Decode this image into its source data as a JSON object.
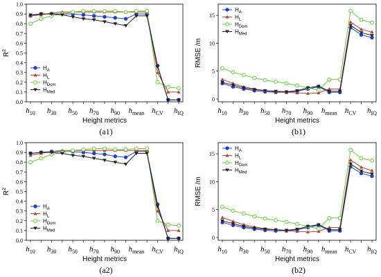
{
  "colors": {
    "H_A": "#1f3fd6",
    "H_L": "#b5452f",
    "H_Dom": "#66cc33",
    "H_Med": "#222222"
  },
  "markers": {
    "H_A": "circle",
    "H_L": "triangle-up",
    "H_Dom": "circle-open",
    "H_Med": "triangle-down"
  },
  "chart_data": [
    {
      "id": "a1",
      "type": "line",
      "panel_label": "(a1)",
      "xlabel": "Height metrics",
      "ylabel": "R",
      "ylabel_sup": "2",
      "ylim": [
        0,
        1.0
      ],
      "yticks": [
        0.0,
        0.1,
        0.2,
        0.3,
        0.4,
        0.5,
        0.6,
        0.7,
        0.8,
        0.9,
        1.0
      ],
      "ytick_labels": [
        "0.0",
        "0.1",
        "0.2",
        "0.3",
        "0.4",
        "0.5",
        "0.6",
        "0.7",
        "0.8",
        "0.9",
        "1.0"
      ],
      "legend_position": "left",
      "categories": [
        {
          "base": "h",
          "sub": "10"
        },
        {
          "base": "h",
          "sub": "20"
        },
        {
          "base": "h",
          "sub": "30"
        },
        {
          "base": "h",
          "sub": "40"
        },
        {
          "base": "h",
          "sub": "50"
        },
        {
          "base": "h",
          "sub": "60"
        },
        {
          "base": "h",
          "sub": "70"
        },
        {
          "base": "h",
          "sub": "80"
        },
        {
          "base": "h",
          "sub": "90"
        },
        {
          "base": "h",
          "sub": "95"
        },
        {
          "base": "h",
          "sub": "mean"
        },
        {
          "base": "h",
          "sub": "max"
        },
        {
          "base": "h",
          "sub": "CV"
        },
        {
          "base": "h",
          "sub": "std"
        },
        {
          "base": "h",
          "sub": "IQ"
        }
      ],
      "shown_category_indices": [
        0,
        2,
        4,
        6,
        8,
        10,
        12,
        14
      ],
      "series": [
        {
          "key": "H_A",
          "name": "H",
          "sub": "A",
          "values": [
            0.88,
            0.9,
            0.9,
            0.9,
            0.9,
            0.89,
            0.88,
            0.87,
            0.86,
            0.85,
            0.9,
            0.9,
            0.37,
            0.02,
            0.02
          ]
        },
        {
          "key": "H_L",
          "name": "H",
          "sub": "L",
          "values": [
            0.88,
            0.89,
            0.91,
            0.92,
            0.92,
            0.92,
            0.92,
            0.92,
            0.92,
            0.92,
            0.92,
            0.92,
            0.3,
            0.1,
            0.1
          ]
        },
        {
          "key": "H_Dom",
          "name": "H",
          "sub": "Dom",
          "values": [
            0.8,
            0.85,
            0.88,
            0.9,
            0.92,
            0.93,
            0.93,
            0.93,
            0.93,
            0.92,
            0.93,
            0.93,
            0.2,
            0.15,
            0.14
          ]
        },
        {
          "key": "H_Med",
          "name": "H",
          "sub": "Med",
          "values": [
            0.89,
            0.9,
            0.9,
            0.89,
            0.87,
            0.85,
            0.84,
            0.82,
            0.8,
            0.78,
            0.88,
            0.88,
            0.36,
            0.02,
            0.02
          ]
        }
      ]
    },
    {
      "id": "b1",
      "type": "line",
      "panel_label": "(b1)",
      "xlabel": "Height metrics",
      "ylabel": "RMSE /m",
      "ylabel_sup": "",
      "ylim": [
        -0.5,
        17
      ],
      "yticks": [
        0,
        5,
        10,
        15
      ],
      "ytick_labels": [
        "0",
        "5",
        "10",
        "15"
      ],
      "legend_position": "top-left",
      "categories": [
        {
          "base": "h",
          "sub": "10"
        },
        {
          "base": "h",
          "sub": "20"
        },
        {
          "base": "h",
          "sub": "30"
        },
        {
          "base": "h",
          "sub": "40"
        },
        {
          "base": "h",
          "sub": "50"
        },
        {
          "base": "h",
          "sub": "60"
        },
        {
          "base": "h",
          "sub": "70"
        },
        {
          "base": "h",
          "sub": "80"
        },
        {
          "base": "h",
          "sub": "90"
        },
        {
          "base": "h",
          "sub": "95"
        },
        {
          "base": "h",
          "sub": "mean"
        },
        {
          "base": "h",
          "sub": "max"
        },
        {
          "base": "h",
          "sub": "CV"
        },
        {
          "base": "h",
          "sub": "std"
        },
        {
          "base": "h",
          "sub": "IQ"
        }
      ],
      "shown_category_indices": [
        0,
        2,
        4,
        6,
        8,
        10,
        12,
        14
      ],
      "series": [
        {
          "key": "H_A",
          "name": "H",
          "sub": "A",
          "values": [
            2.8,
            2.2,
            1.8,
            1.5,
            1.3,
            1.2,
            1.2,
            1.4,
            1.8,
            2.2,
            1.2,
            1.2,
            12.8,
            11.5,
            11.0
          ]
        },
        {
          "key": "H_L",
          "name": "H",
          "sub": "L",
          "values": [
            3.5,
            2.8,
            2.2,
            1.8,
            1.5,
            1.3,
            1.2,
            1.1,
            1.0,
            1.1,
            1.8,
            1.8,
            13.8,
            12.5,
            12.0
          ]
        },
        {
          "key": "H_Dom",
          "name": "H",
          "sub": "Dom",
          "values": [
            5.5,
            4.8,
            4.3,
            3.8,
            3.4,
            3.1,
            2.8,
            2.4,
            2.0,
            1.6,
            3.5,
            3.5,
            15.8,
            14.2,
            13.7
          ]
        },
        {
          "key": "H_Med",
          "name": "H",
          "sub": "Med",
          "values": [
            3.0,
            2.5,
            2.0,
            1.7,
            1.5,
            1.4,
            1.3,
            1.5,
            2.0,
            2.3,
            1.4,
            1.4,
            13.2,
            11.9,
            11.4
          ]
        }
      ]
    },
    {
      "id": "a2",
      "type": "line",
      "panel_label": "(a2)",
      "xlabel": "Height metrics",
      "ylabel": "R",
      "ylabel_sup": "2",
      "ylim": [
        0,
        1.0
      ],
      "yticks": [
        0.0,
        0.1,
        0.2,
        0.3,
        0.4,
        0.5,
        0.6,
        0.7,
        0.8,
        0.9,
        1.0
      ],
      "ytick_labels": [
        "0.0",
        "0.1",
        "0.2",
        "0.3",
        "0.4",
        "0.5",
        "0.6",
        "0.7",
        "0.8",
        "0.9",
        "1.0"
      ],
      "legend_position": "left",
      "categories": [
        {
          "base": "h",
          "sub": "10"
        },
        {
          "base": "h",
          "sub": "20"
        },
        {
          "base": "h",
          "sub": "30"
        },
        {
          "base": "h",
          "sub": "40"
        },
        {
          "base": "h",
          "sub": "50"
        },
        {
          "base": "h",
          "sub": "60"
        },
        {
          "base": "h",
          "sub": "70"
        },
        {
          "base": "h",
          "sub": "80"
        },
        {
          "base": "h",
          "sub": "90"
        },
        {
          "base": "h",
          "sub": "95"
        },
        {
          "base": "h",
          "sub": "mean"
        },
        {
          "base": "h",
          "sub": "max"
        },
        {
          "base": "h",
          "sub": "CV"
        },
        {
          "base": "h",
          "sub": "std"
        },
        {
          "base": "h",
          "sub": "IQ"
        }
      ],
      "shown_category_indices": [
        0,
        2,
        4,
        6,
        8,
        10,
        12,
        14
      ],
      "series": [
        {
          "key": "H_A",
          "name": "H",
          "sub": "A",
          "values": [
            0.89,
            0.9,
            0.91,
            0.91,
            0.91,
            0.9,
            0.89,
            0.88,
            0.86,
            0.85,
            0.91,
            0.91,
            0.37,
            0.02,
            0.02
          ]
        },
        {
          "key": "H_L",
          "name": "H",
          "sub": "L",
          "values": [
            0.87,
            0.89,
            0.91,
            0.92,
            0.92,
            0.92,
            0.92,
            0.92,
            0.92,
            0.92,
            0.92,
            0.92,
            0.3,
            0.1,
            0.1
          ]
        },
        {
          "key": "H_Dom",
          "name": "H",
          "sub": "Dom",
          "values": [
            0.8,
            0.84,
            0.88,
            0.9,
            0.92,
            0.93,
            0.94,
            0.94,
            0.93,
            0.93,
            0.94,
            0.94,
            0.2,
            0.16,
            0.15
          ]
        },
        {
          "key": "H_Med",
          "name": "H",
          "sub": "Med",
          "values": [
            0.89,
            0.9,
            0.9,
            0.89,
            0.87,
            0.86,
            0.84,
            0.82,
            0.8,
            0.78,
            0.89,
            0.89,
            0.35,
            0.02,
            0.02
          ]
        }
      ]
    },
    {
      "id": "b2",
      "type": "line",
      "panel_label": "(b2)",
      "xlabel": "Height metrics",
      "ylabel": "RMSE /m",
      "ylabel_sup": "",
      "ylim": [
        -0.5,
        17
      ],
      "yticks": [
        0,
        5,
        10,
        15
      ],
      "ytick_labels": [
        "0",
        "5",
        "10",
        "15"
      ],
      "legend_position": "top-left",
      "categories": [
        {
          "base": "h",
          "sub": "10"
        },
        {
          "base": "h",
          "sub": "20"
        },
        {
          "base": "h",
          "sub": "30"
        },
        {
          "base": "h",
          "sub": "40"
        },
        {
          "base": "h",
          "sub": "50"
        },
        {
          "base": "h",
          "sub": "60"
        },
        {
          "base": "h",
          "sub": "70"
        },
        {
          "base": "h",
          "sub": "80"
        },
        {
          "base": "h",
          "sub": "90"
        },
        {
          "base": "h",
          "sub": "95"
        },
        {
          "base": "h",
          "sub": "mean"
        },
        {
          "base": "h",
          "sub": "max"
        },
        {
          "base": "h",
          "sub": "CV"
        },
        {
          "base": "h",
          "sub": "std"
        },
        {
          "base": "h",
          "sub": "IQ"
        }
      ],
      "shown_category_indices": [
        0,
        2,
        4,
        6,
        8,
        10,
        12,
        14
      ],
      "series": [
        {
          "key": "H_A",
          "name": "H",
          "sub": "A",
          "values": [
            2.7,
            2.2,
            1.8,
            1.5,
            1.3,
            1.2,
            1.2,
            1.4,
            1.8,
            2.2,
            1.2,
            1.2,
            12.7,
            11.5,
            11.0
          ]
        },
        {
          "key": "H_L",
          "name": "H",
          "sub": "L",
          "values": [
            3.6,
            2.9,
            2.3,
            1.9,
            1.6,
            1.4,
            1.2,
            1.1,
            1.0,
            1.1,
            1.8,
            1.8,
            13.9,
            12.6,
            12.0
          ]
        },
        {
          "key": "H_Dom",
          "name": "H",
          "sub": "Dom",
          "values": [
            5.5,
            4.8,
            4.3,
            3.8,
            3.4,
            3.1,
            2.8,
            2.4,
            2.0,
            1.6,
            3.5,
            3.5,
            15.7,
            14.2,
            13.8
          ]
        },
        {
          "key": "H_Med",
          "name": "H",
          "sub": "Med",
          "values": [
            3.0,
            2.5,
            2.0,
            1.7,
            1.5,
            1.4,
            1.3,
            1.5,
            2.0,
            2.3,
            1.4,
            1.4,
            13.2,
            11.9,
            11.4
          ]
        }
      ]
    }
  ]
}
